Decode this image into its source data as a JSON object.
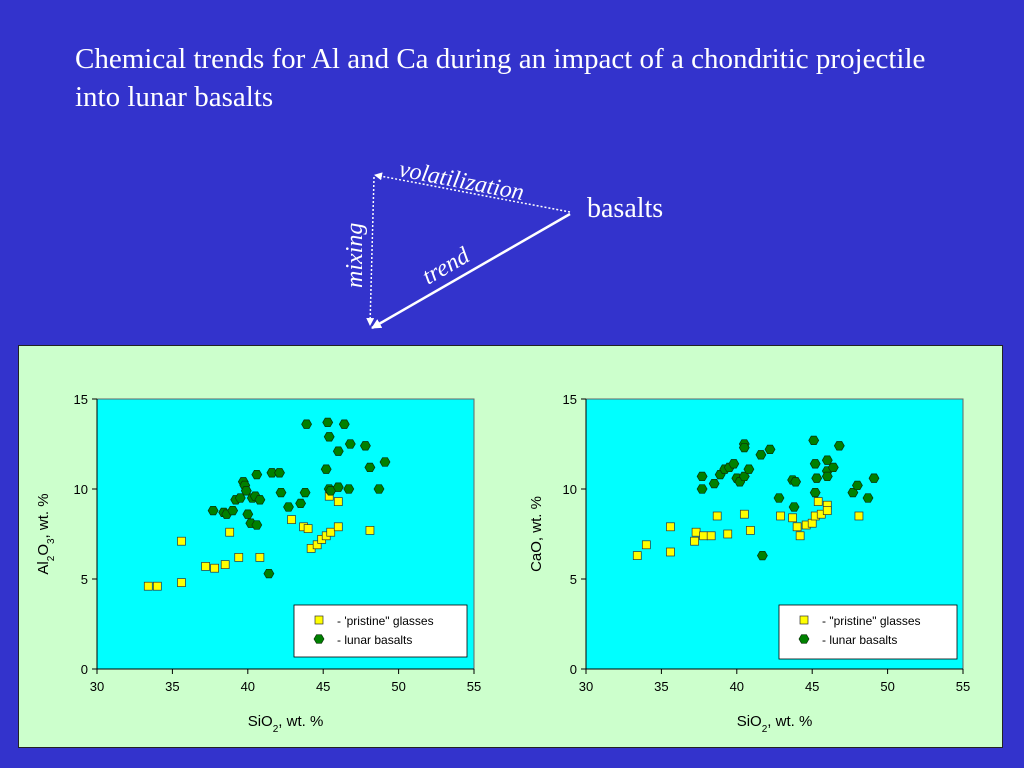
{
  "title": "Chemical trends for Al and Ca during an impact of a chondritic projectile into lunar basalts",
  "diagram": {
    "volatilization": "volatilization",
    "mixing": "mixing",
    "trend": "trend",
    "basalts": "basalts"
  },
  "colors": {
    "background": "#3333cc",
    "panel": "#ccffcc",
    "plot_area": "#00ffff",
    "glasses": "#ffff00",
    "basalts": "#008000"
  },
  "chart_data": [
    {
      "type": "scatter",
      "ylabel_parts": [
        "Al",
        "2",
        "O",
        "3",
        ", wt. %"
      ],
      "xlabel_parts": [
        "SiO",
        "2",
        ", wt. %"
      ],
      "xlim": [
        30,
        55
      ],
      "ylim": [
        0,
        15
      ],
      "xticks": [
        "30",
        "35",
        "40",
        "45",
        "50",
        "55"
      ],
      "yticks": [
        "0",
        "5",
        "10",
        "15"
      ],
      "legend": [
        "- 'pristine\" glasses",
        "- lunar basalts"
      ],
      "legend_position": "bottom-right",
      "series": [
        {
          "name": "- 'pristine\" glasses",
          "marker": "square",
          "points": [
            [
              33.4,
              4.6
            ],
            [
              34.0,
              4.6
            ],
            [
              35.6,
              4.8
            ],
            [
              35.6,
              7.1
            ],
            [
              37.2,
              5.7
            ],
            [
              37.8,
              5.6
            ],
            [
              38.5,
              5.8
            ],
            [
              38.8,
              7.6
            ],
            [
              39.4,
              6.2
            ],
            [
              40.8,
              6.2
            ],
            [
              42.9,
              8.3
            ],
            [
              43.7,
              7.9
            ],
            [
              44.0,
              7.8
            ],
            [
              44.2,
              6.7
            ],
            [
              44.6,
              6.9
            ],
            [
              44.9,
              7.2
            ],
            [
              45.2,
              7.4
            ],
            [
              45.4,
              9.6
            ],
            [
              45.5,
              7.6
            ],
            [
              46.0,
              9.3
            ],
            [
              46.0,
              7.9
            ],
            [
              48.1,
              7.7
            ]
          ]
        },
        {
          "name": "- lunar basalts",
          "marker": "hexagon",
          "points": [
            [
              37.7,
              8.8
            ],
            [
              38.4,
              8.7
            ],
            [
              38.6,
              8.6
            ],
            [
              39.0,
              8.8
            ],
            [
              39.2,
              9.4
            ],
            [
              39.5,
              9.5
            ],
            [
              39.7,
              10.4
            ],
            [
              39.8,
              10.2
            ],
            [
              39.9,
              9.9
            ],
            [
              40.0,
              8.6
            ],
            [
              40.2,
              8.1
            ],
            [
              40.3,
              9.5
            ],
            [
              40.5,
              9.6
            ],
            [
              40.6,
              10.8
            ],
            [
              40.8,
              9.4
            ],
            [
              40.6,
              8.0
            ],
            [
              41.4,
              5.3
            ],
            [
              41.6,
              10.9
            ],
            [
              42.1,
              10.9
            ],
            [
              42.2,
              9.8
            ],
            [
              42.7,
              9.0
            ],
            [
              43.5,
              9.2
            ],
            [
              43.8,
              9.8
            ],
            [
              43.9,
              13.6
            ],
            [
              45.2,
              11.1
            ],
            [
              45.3,
              13.7
            ],
            [
              45.4,
              12.9
            ],
            [
              45.4,
              10.0
            ],
            [
              45.5,
              9.9
            ],
            [
              46.0,
              12.1
            ],
            [
              46.0,
              10.1
            ],
            [
              46.4,
              13.6
            ],
            [
              46.7,
              10.0
            ],
            [
              46.8,
              12.5
            ],
            [
              47.8,
              12.4
            ],
            [
              48.1,
              11.2
            ],
            [
              48.7,
              10.0
            ],
            [
              49.1,
              11.5
            ]
          ]
        }
      ]
    },
    {
      "type": "scatter",
      "ylabel_parts": [
        "CaO, wt. %"
      ],
      "xlabel_parts": [
        "SiO",
        "2",
        ", wt. %"
      ],
      "xlim": [
        30,
        55
      ],
      "ylim": [
        0,
        15
      ],
      "xticks": [
        "30",
        "35",
        "40",
        "45",
        "50",
        "55"
      ],
      "yticks": [
        "0",
        "5",
        "10",
        "15"
      ],
      "legend": [
        "- \"pristine\" glasses",
        "- lunar basalts"
      ],
      "legend_position": "bottom-right",
      "series": [
        {
          "name": "- \"pristine\" glasses",
          "marker": "square",
          "points": [
            [
              33.4,
              6.3
            ],
            [
              34.0,
              6.9
            ],
            [
              35.6,
              7.9
            ],
            [
              35.6,
              6.5
            ],
            [
              37.2,
              7.1
            ],
            [
              37.3,
              7.6
            ],
            [
              37.8,
              7.4
            ],
            [
              38.3,
              7.4
            ],
            [
              38.7,
              8.5
            ],
            [
              39.4,
              7.5
            ],
            [
              40.5,
              8.6
            ],
            [
              40.9,
              7.7
            ],
            [
              42.9,
              8.5
            ],
            [
              43.7,
              8.4
            ],
            [
              44.0,
              7.9
            ],
            [
              44.2,
              7.4
            ],
            [
              44.6,
              8.0
            ],
            [
              45.0,
              8.1
            ],
            [
              45.2,
              8.5
            ],
            [
              45.4,
              9.3
            ],
            [
              45.6,
              8.6
            ],
            [
              46.0,
              9.1
            ],
            [
              46.0,
              8.8
            ],
            [
              48.1,
              8.5
            ]
          ]
        },
        {
          "name": "- lunar basalts",
          "marker": "hexagon",
          "points": [
            [
              37.7,
              10.7
            ],
            [
              37.7,
              10.0
            ],
            [
              38.5,
              10.3
            ],
            [
              38.9,
              10.8
            ],
            [
              39.2,
              11.1
            ],
            [
              39.5,
              11.2
            ],
            [
              39.8,
              11.4
            ],
            [
              40.0,
              10.6
            ],
            [
              40.2,
              10.4
            ],
            [
              40.5,
              10.7
            ],
            [
              40.5,
              12.5
            ],
            [
              40.5,
              12.3
            ],
            [
              40.8,
              11.1
            ],
            [
              41.6,
              11.9
            ],
            [
              41.7,
              6.3
            ],
            [
              42.2,
              12.2
            ],
            [
              42.8,
              9.5
            ],
            [
              43.7,
              10.5
            ],
            [
              43.9,
              10.4
            ],
            [
              43.8,
              9.0
            ],
            [
              45.1,
              12.7
            ],
            [
              45.2,
              11.4
            ],
            [
              45.2,
              9.8
            ],
            [
              45.3,
              10.6
            ],
            [
              46.0,
              11.6
            ],
            [
              46.0,
              11.0
            ],
            [
              46.0,
              10.7
            ],
            [
              46.4,
              11.2
            ],
            [
              46.8,
              12.4
            ],
            [
              47.7,
              9.8
            ],
            [
              48.0,
              10.2
            ],
            [
              48.7,
              9.5
            ],
            [
              49.1,
              10.6
            ]
          ]
        }
      ]
    }
  ]
}
